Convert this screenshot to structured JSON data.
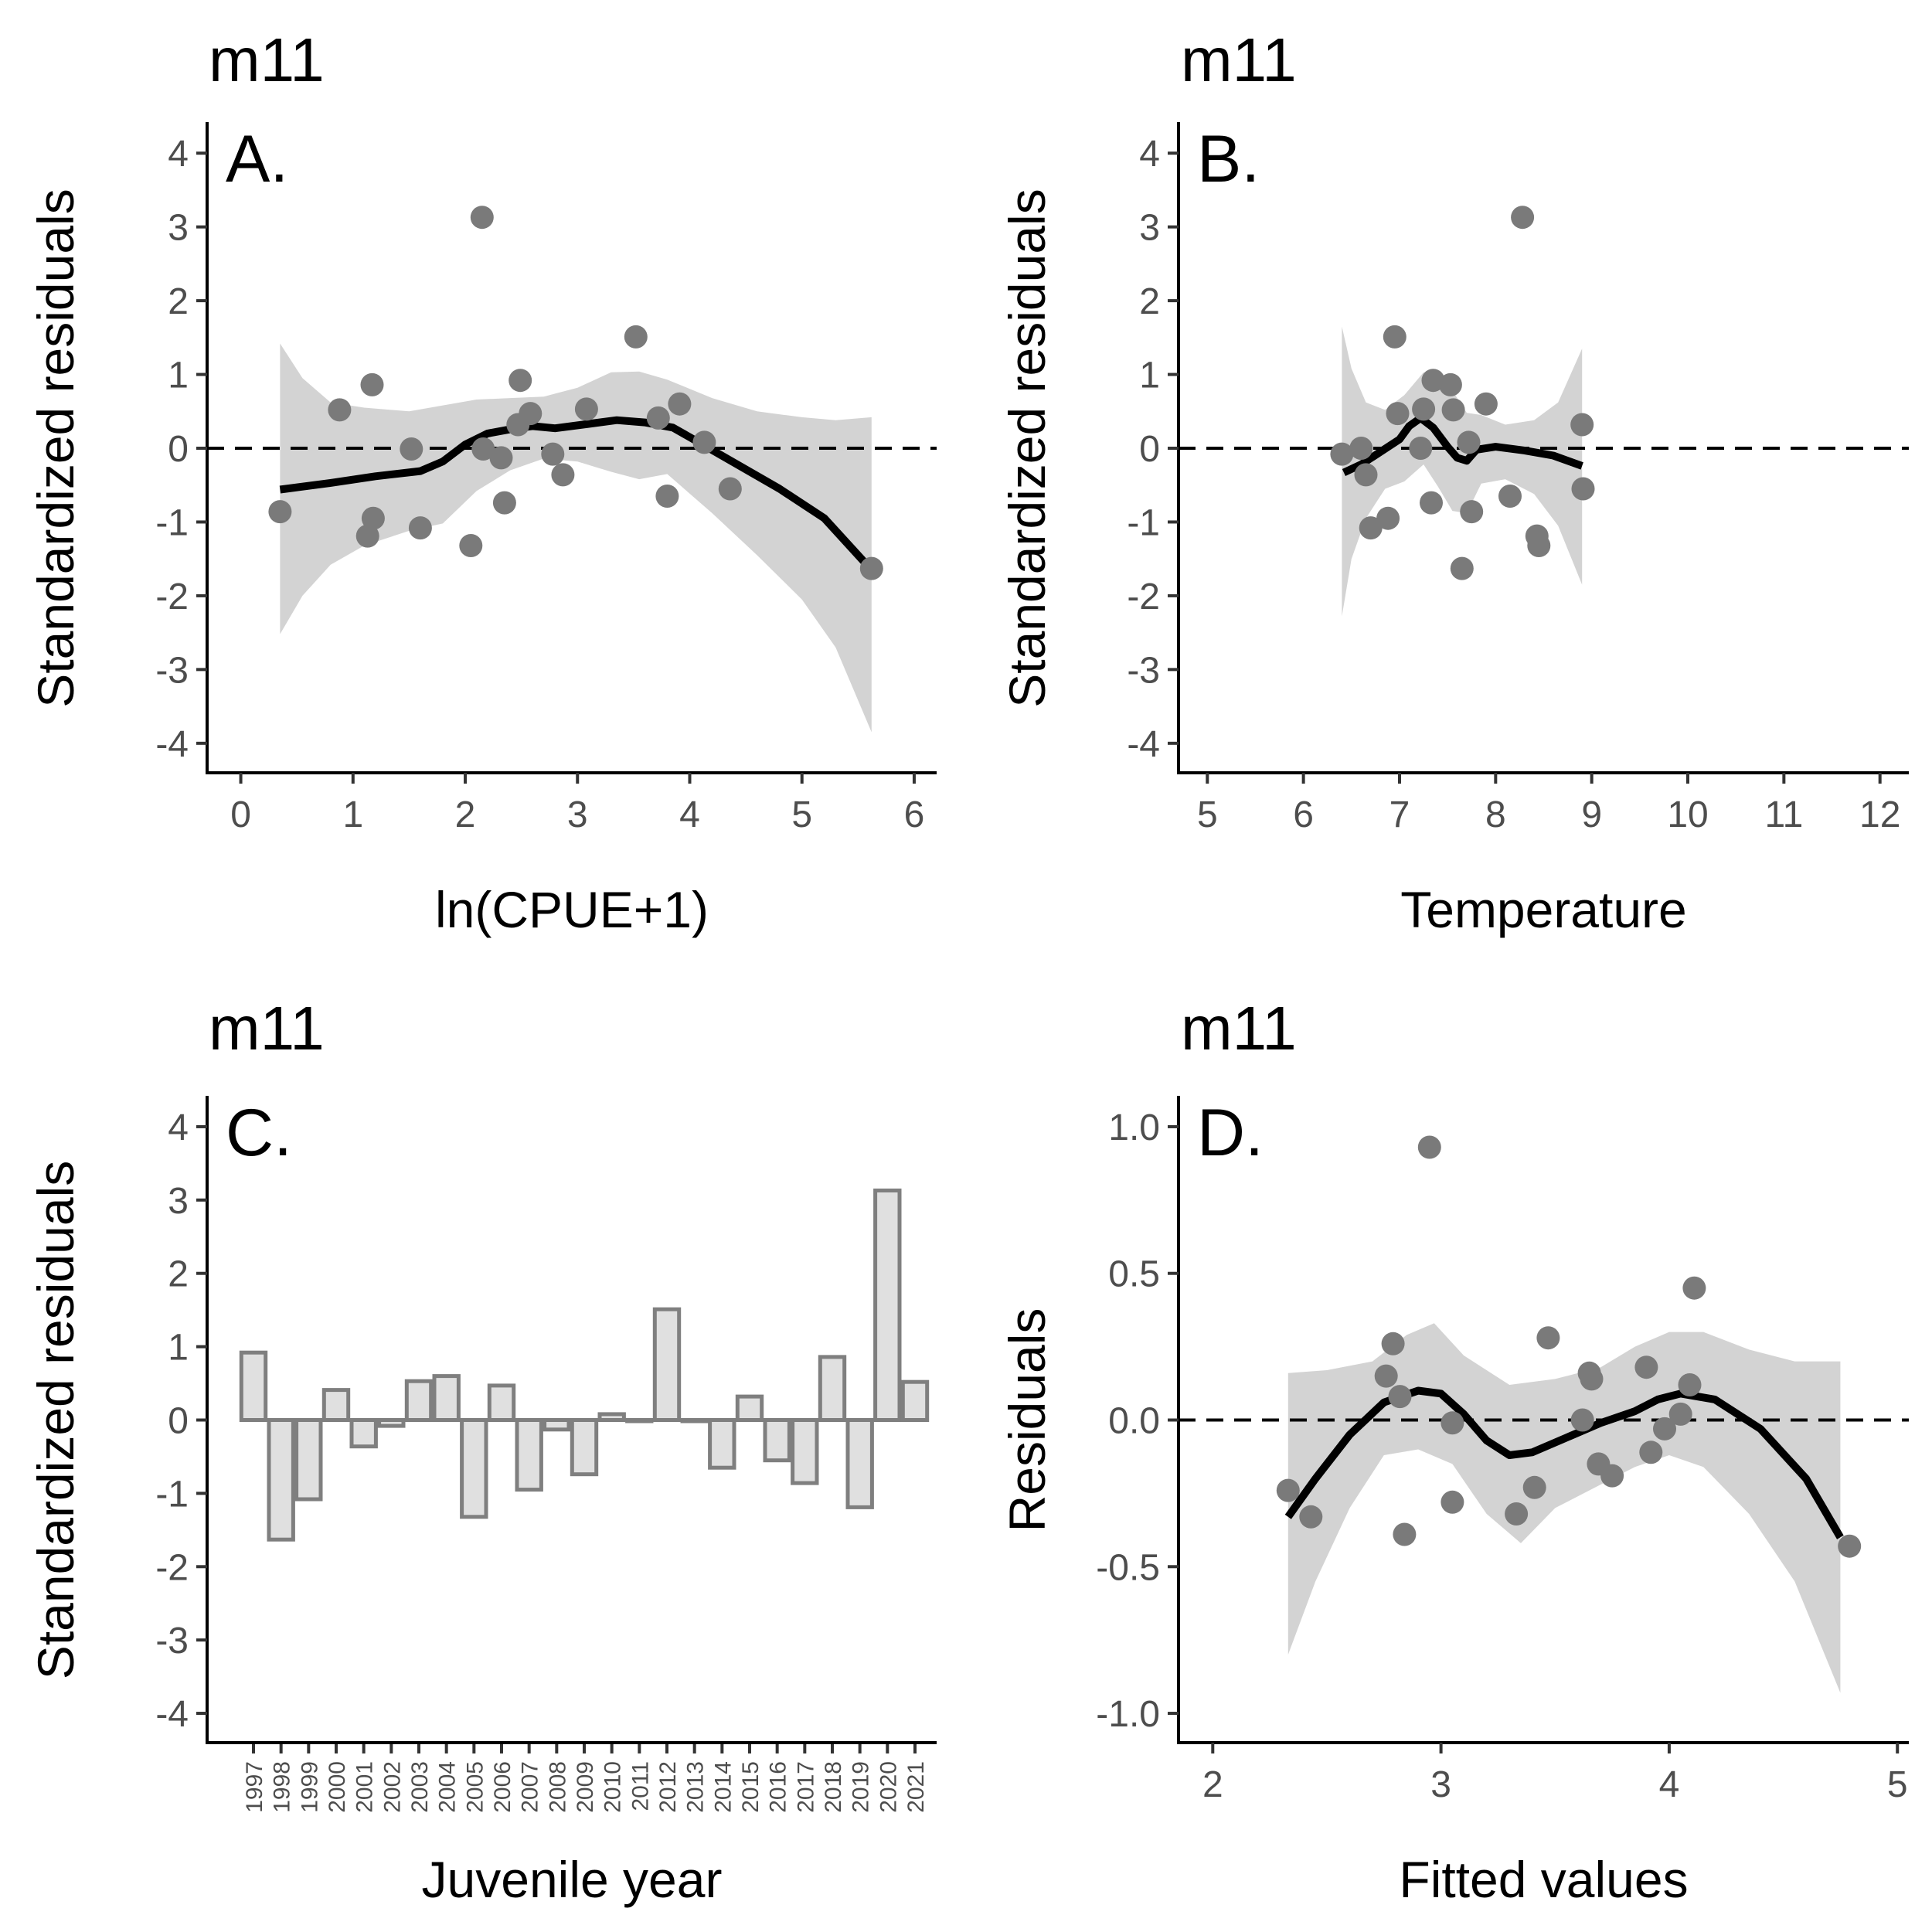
{
  "chart_data": [
    {
      "id": "A",
      "type": "scatter",
      "title": "m11",
      "panel_label": "A.",
      "xlabel": "ln(CPUE+1)",
      "ylabel": "Standardized residuals",
      "xlim": [
        -0.3,
        6.2
      ],
      "ylim": [
        -4.4,
        4.4
      ],
      "xticks": [
        0,
        1,
        2,
        3,
        4,
        5,
        6
      ],
      "xtick_labels": [
        "0",
        "1",
        "2",
        "3",
        "4",
        "5",
        "6"
      ],
      "yticks": [
        4,
        3,
        2,
        1,
        0,
        -1,
        -2,
        -3,
        -4
      ],
      "ytick_labels": [
        "4",
        "3",
        "2",
        "1",
        "0",
        "-1",
        "-2",
        "-3",
        "-4"
      ],
      "reference_line": 0,
      "points": [
        [
          0.35,
          -0.86
        ],
        [
          0.88,
          0.52
        ],
        [
          1.13,
          -1.19
        ],
        [
          1.17,
          0.86
        ],
        [
          1.18,
          -0.95
        ],
        [
          1.52,
          -0.01
        ],
        [
          1.6,
          -1.08
        ],
        [
          2.05,
          -1.32
        ],
        [
          2.15,
          3.13
        ],
        [
          2.16,
          -0.01
        ],
        [
          2.32,
          -0.13
        ],
        [
          2.35,
          -0.74
        ],
        [
          2.47,
          0.32
        ],
        [
          2.49,
          0.92
        ],
        [
          2.58,
          0.47
        ],
        [
          2.78,
          -0.08
        ],
        [
          2.87,
          -0.36
        ],
        [
          3.08,
          0.53
        ],
        [
          3.52,
          1.51
        ],
        [
          3.72,
          0.41
        ],
        [
          3.8,
          -0.65
        ],
        [
          3.91,
          0.6
        ],
        [
          4.13,
          0.08
        ],
        [
          4.36,
          -0.55
        ],
        [
          5.62,
          -1.63
        ]
      ],
      "smooth": [
        [
          0.35,
          -0.56
        ],
        [
          0.8,
          -0.47
        ],
        [
          1.2,
          -0.38
        ],
        [
          1.6,
          -0.31
        ],
        [
          1.8,
          -0.18
        ],
        [
          2.0,
          0.05
        ],
        [
          2.2,
          0.2
        ],
        [
          2.45,
          0.27
        ],
        [
          2.6,
          0.3
        ],
        [
          2.8,
          0.27
        ],
        [
          3.1,
          0.33
        ],
        [
          3.35,
          0.38
        ],
        [
          3.6,
          0.35
        ],
        [
          3.85,
          0.28
        ],
        [
          4.0,
          0.15
        ],
        [
          4.4,
          -0.2
        ],
        [
          4.8,
          -0.55
        ],
        [
          5.2,
          -0.95
        ],
        [
          5.62,
          -1.65
        ]
      ],
      "band_upper": [
        [
          0.35,
          1.42
        ],
        [
          0.55,
          0.95
        ],
        [
          0.8,
          0.62
        ],
        [
          1.1,
          0.55
        ],
        [
          1.5,
          0.5
        ],
        [
          1.8,
          0.58
        ],
        [
          2.1,
          0.66
        ],
        [
          2.4,
          0.68
        ],
        [
          2.7,
          0.7
        ],
        [
          3.0,
          0.82
        ],
        [
          3.3,
          1.03
        ],
        [
          3.55,
          1.04
        ],
        [
          3.8,
          0.93
        ],
        [
          4.2,
          0.68
        ],
        [
          4.6,
          0.5
        ],
        [
          5.0,
          0.42
        ],
        [
          5.3,
          0.38
        ],
        [
          5.62,
          0.42
        ]
      ],
      "band_lower": [
        [
          0.35,
          -2.52
        ],
        [
          0.55,
          -2.0
        ],
        [
          0.8,
          -1.58
        ],
        [
          1.1,
          -1.32
        ],
        [
          1.5,
          -1.12
        ],
        [
          1.8,
          -1.02
        ],
        [
          2.1,
          -0.58
        ],
        [
          2.4,
          -0.3
        ],
        [
          2.7,
          -0.14
        ],
        [
          3.0,
          -0.18
        ],
        [
          3.3,
          -0.32
        ],
        [
          3.55,
          -0.42
        ],
        [
          3.8,
          -0.35
        ],
        [
          4.2,
          -0.88
        ],
        [
          4.6,
          -1.45
        ],
        [
          5.0,
          -2.05
        ],
        [
          5.3,
          -2.7
        ],
        [
          5.62,
          -3.85
        ]
      ]
    },
    {
      "id": "B",
      "type": "scatter",
      "title": "m11",
      "panel_label": "B.",
      "xlabel": "Temperature",
      "ylabel": "Standardized residuals",
      "xlim": [
        4.7,
        12.3
      ],
      "ylim": [
        -4.4,
        4.4
      ],
      "xticks": [
        5,
        6,
        7,
        8,
        9,
        10,
        11,
        12
      ],
      "xtick_labels": [
        "5",
        "6",
        "7",
        "8",
        "9",
        "10",
        "11",
        "12"
      ],
      "yticks": [
        4,
        3,
        2,
        1,
        0,
        -1,
        -2,
        -3,
        -4
      ],
      "ytick_labels": [
        "4",
        "3",
        "2",
        "1",
        "0",
        "-1",
        "-2",
        "-3",
        "-4"
      ],
      "reference_line": 0,
      "points": [
        [
          6.4,
          -0.08
        ],
        [
          6.6,
          0.0
        ],
        [
          6.65,
          -0.36
        ],
        [
          6.7,
          -1.08
        ],
        [
          6.88,
          -0.95
        ],
        [
          6.95,
          1.51
        ],
        [
          6.98,
          0.47
        ],
        [
          7.22,
          0.0
        ],
        [
          7.25,
          0.53
        ],
        [
          7.33,
          -0.74
        ],
        [
          7.35,
          0.92
        ],
        [
          7.53,
          0.86
        ],
        [
          7.56,
          0.52
        ],
        [
          7.65,
          -1.63
        ],
        [
          7.72,
          0.08
        ],
        [
          7.75,
          -0.86
        ],
        [
          7.9,
          0.6
        ],
        [
          8.15,
          -0.65
        ],
        [
          8.28,
          3.13
        ],
        [
          8.43,
          -1.19
        ],
        [
          8.45,
          -1.32
        ],
        [
          8.9,
          0.32
        ],
        [
          8.91,
          -0.55
        ]
      ],
      "smooth": [
        [
          6.42,
          -0.33
        ],
        [
          6.6,
          -0.22
        ],
        [
          6.8,
          -0.05
        ],
        [
          7.0,
          0.12
        ],
        [
          7.1,
          0.3
        ],
        [
          7.22,
          0.41
        ],
        [
          7.35,
          0.28
        ],
        [
          7.5,
          0.02
        ],
        [
          7.6,
          -0.13
        ],
        [
          7.7,
          -0.17
        ],
        [
          7.8,
          -0.02
        ],
        [
          8.0,
          0.02
        ],
        [
          8.3,
          -0.03
        ],
        [
          8.6,
          -0.1
        ],
        [
          8.9,
          -0.24
        ]
      ],
      "band_upper": [
        [
          6.4,
          1.65
        ],
        [
          6.5,
          1.08
        ],
        [
          6.65,
          0.62
        ],
        [
          6.85,
          0.52
        ],
        [
          7.05,
          0.72
        ],
        [
          7.25,
          1.03
        ],
        [
          7.4,
          0.98
        ],
        [
          7.55,
          0.78
        ],
        [
          7.7,
          0.48
        ],
        [
          7.85,
          0.45
        ],
        [
          8.1,
          0.32
        ],
        [
          8.4,
          0.38
        ],
        [
          8.65,
          0.62
        ],
        [
          8.9,
          1.35
        ]
      ],
      "band_lower": [
        [
          6.4,
          -2.28
        ],
        [
          6.5,
          -1.5
        ],
        [
          6.65,
          -0.95
        ],
        [
          6.85,
          -0.55
        ],
        [
          7.05,
          -0.45
        ],
        [
          7.25,
          -0.22
        ],
        [
          7.4,
          -0.52
        ],
        [
          7.55,
          -0.85
        ],
        [
          7.7,
          -0.88
        ],
        [
          7.85,
          -0.48
        ],
        [
          8.1,
          -0.42
        ],
        [
          8.4,
          -0.62
        ],
        [
          8.65,
          -1.05
        ],
        [
          8.9,
          -1.85
        ]
      ]
    },
    {
      "id": "C",
      "type": "bar",
      "title": "m11",
      "panel_label": "C.",
      "xlabel": "Juvenile year",
      "ylabel": "Standardized residuals",
      "ylim": [
        -4.4,
        4.4
      ],
      "yticks": [
        4,
        3,
        2,
        1,
        0,
        -1,
        -2,
        -3,
        -4
      ],
      "ytick_labels": [
        "4",
        "3",
        "2",
        "1",
        "0",
        "-1",
        "-2",
        "-3",
        "-4"
      ],
      "categories": [
        "1997",
        "1998",
        "1999",
        "2000",
        "2001",
        "2002",
        "2003",
        "2004",
        "2005",
        "2006",
        "2007",
        "2008",
        "2009",
        "2010",
        "2011",
        "2012",
        "2013",
        "2014",
        "2015",
        "2016",
        "2017",
        "2018",
        "2019",
        "2020",
        "2021"
      ],
      "values": [
        0.92,
        -1.63,
        -1.08,
        0.41,
        -0.36,
        -0.08,
        0.53,
        0.6,
        -1.32,
        0.47,
        -0.95,
        -0.13,
        -0.74,
        0.08,
        -0.01,
        1.51,
        0.0,
        -0.65,
        0.32,
        -0.55,
        -0.86,
        0.86,
        -1.19,
        3.13,
        0.52
      ]
    },
    {
      "id": "D",
      "type": "scatter",
      "title": "m11",
      "panel_label": "D.",
      "xlabel": "Fitted values",
      "ylabel": "Residuals",
      "xlim": [
        1.85,
        5.05
      ],
      "ylim": [
        -1.1,
        1.1
      ],
      "xticks": [
        2,
        3,
        4,
        5
      ],
      "xtick_labels": [
        "2",
        "3",
        "4",
        "5"
      ],
      "yticks": [
        1.0,
        0.5,
        0.0,
        -0.5,
        -1.0
      ],
      "ytick_labels": [
        "1.0",
        "0.5",
        "0.0",
        "-0.5",
        "-1.0"
      ],
      "reference_line": 0,
      "points": [
        [
          2.33,
          -0.24
        ],
        [
          2.43,
          -0.33
        ],
        [
          2.76,
          0.15
        ],
        [
          2.79,
          0.26
        ],
        [
          2.82,
          0.08
        ],
        [
          2.84,
          -0.39
        ],
        [
          2.95,
          0.93
        ],
        [
          3.05,
          -0.01
        ],
        [
          3.05,
          -0.28
        ],
        [
          3.33,
          -0.32
        ],
        [
          3.41,
          -0.23
        ],
        [
          3.47,
          0.28
        ],
        [
          3.62,
          0.0
        ],
        [
          3.65,
          0.16
        ],
        [
          3.66,
          0.14
        ],
        [
          3.69,
          -0.15
        ],
        [
          3.75,
          -0.19
        ],
        [
          3.9,
          0.18
        ],
        [
          3.92,
          -0.11
        ],
        [
          3.98,
          -0.03
        ],
        [
          4.05,
          0.02
        ],
        [
          4.09,
          0.12
        ],
        [
          4.11,
          0.45
        ],
        [
          4.79,
          -0.43
        ]
      ],
      "smooth": [
        [
          2.33,
          -0.33
        ],
        [
          2.45,
          -0.2
        ],
        [
          2.6,
          -0.05
        ],
        [
          2.75,
          0.06
        ],
        [
          2.9,
          0.1
        ],
        [
          3.0,
          0.09
        ],
        [
          3.1,
          0.02
        ],
        [
          3.2,
          -0.07
        ],
        [
          3.3,
          -0.12
        ],
        [
          3.4,
          -0.11
        ],
        [
          3.55,
          -0.06
        ],
        [
          3.7,
          -0.01
        ],
        [
          3.85,
          0.03
        ],
        [
          3.95,
          0.07
        ],
        [
          4.05,
          0.09
        ],
        [
          4.2,
          0.07
        ],
        [
          4.4,
          -0.03
        ],
        [
          4.6,
          -0.2
        ],
        [
          4.75,
          -0.4
        ]
      ],
      "band_upper": [
        [
          2.33,
          0.16
        ],
        [
          2.5,
          0.17
        ],
        [
          2.7,
          0.2
        ],
        [
          2.85,
          0.29
        ],
        [
          2.97,
          0.33
        ],
        [
          3.1,
          0.22
        ],
        [
          3.3,
          0.12
        ],
        [
          3.5,
          0.14
        ],
        [
          3.7,
          0.18
        ],
        [
          3.85,
          0.25
        ],
        [
          4.0,
          0.3
        ],
        [
          4.15,
          0.3
        ],
        [
          4.35,
          0.24
        ],
        [
          4.55,
          0.2
        ],
        [
          4.75,
          0.2
        ]
      ],
      "band_lower": [
        [
          2.33,
          -0.8
        ],
        [
          2.45,
          -0.55
        ],
        [
          2.6,
          -0.3
        ],
        [
          2.75,
          -0.12
        ],
        [
          2.9,
          -0.1
        ],
        [
          3.05,
          -0.15
        ],
        [
          3.2,
          -0.32
        ],
        [
          3.35,
          -0.42
        ],
        [
          3.5,
          -0.3
        ],
        [
          3.7,
          -0.22
        ],
        [
          3.85,
          -0.16
        ],
        [
          4.0,
          -0.12
        ],
        [
          4.15,
          -0.16
        ],
        [
          4.35,
          -0.32
        ],
        [
          4.55,
          -0.55
        ],
        [
          4.75,
          -0.93
        ]
      ]
    }
  ]
}
